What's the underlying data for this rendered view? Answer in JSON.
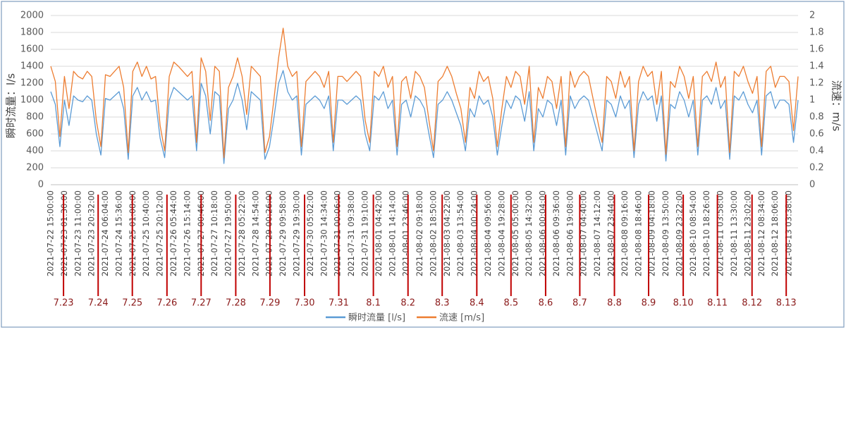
{
  "chart_data": {
    "type": "line",
    "y_label": "瞬时流量：l/s",
    "y2_label": "流速：m/s",
    "ylim": [
      0,
      2000
    ],
    "yticks": [
      0,
      200,
      400,
      600,
      800,
      1000,
      1200,
      1400,
      1600,
      1800,
      2000
    ],
    "y2lim": [
      0,
      2
    ],
    "y2ticks": [
      0,
      0.2,
      0.4,
      0.6,
      0.8,
      1,
      1.2,
      1.4,
      1.6,
      1.8,
      2
    ],
    "grid": true,
    "legend": "bottom",
    "categories": [
      "2021-07-22 15:00:00",
      null,
      null,
      "2021-07-23 01:30:00",
      null,
      null,
      "2021-07-23 11:00:00",
      null,
      null,
      "2021-07-23 20:32:00",
      null,
      null,
      "2021-07-24 06:04:00",
      null,
      null,
      "2021-07-24 15:36:00",
      null,
      null,
      "2021-07-25 01:08:00",
      null,
      null,
      "2021-07-25 10:40:00",
      null,
      null,
      "2021-07-25 20:12:00",
      null,
      null,
      "2021-07-26 05:44:00",
      null,
      null,
      "2021-07-26 15:14:00",
      null,
      null,
      "2021-07-27 00:46:00",
      null,
      null,
      "2021-07-27 10:18:00",
      null,
      null,
      "2021-07-27 19:50:00",
      null,
      null,
      "2021-07-28 05:22:00",
      null,
      null,
      "2021-07-28 14:54:00",
      null,
      null,
      "2021-07-29 00:26:00",
      null,
      null,
      "2021-07-29 09:58:00",
      null,
      null,
      "2021-07-29 19:30:00",
      null,
      null,
      "2021-07-30 05:02:00",
      null,
      null,
      "2021-07-30 14:34:00",
      null,
      null,
      "2021-07-31 00:06:00",
      null,
      null,
      "2021-07-31 09:38:00",
      null,
      null,
      "2021-07-31 19:10:00",
      null,
      null,
      "2021-08-01 04:42:00",
      null,
      null,
      "2021-08-01 14:14:00",
      null,
      null,
      "2021-08-01 23:46:00",
      null,
      null,
      "2021-08-02 09:18:00",
      null,
      null,
      "2021-08-02 18:50:00",
      null,
      null,
      "2021-08-03 04:22:00",
      null,
      null,
      "2021-08-03 13:54:00",
      null,
      null,
      "2021-08-04 00:24:00",
      null,
      null,
      "2021-08-04 09:56:00",
      null,
      null,
      "2021-08-04 19:28:00",
      null,
      null,
      "2021-08-05 05:00:00",
      null,
      null,
      "2021-08-05 14:32:00",
      null,
      null,
      "2021-08-06 00:04:00",
      null,
      null,
      "2021-08-06 09:36:00",
      null,
      null,
      "2021-08-06 19:08:00",
      null,
      null,
      "2021-08-07 04:40:00",
      null,
      null,
      "2021-08-07 14:12:00",
      null,
      null,
      "2021-08-07 23:44:00",
      null,
      null,
      "2021-08-08 09:16:00",
      null,
      null,
      "2021-08-08 18:46:00",
      null,
      null,
      "2021-08-09 04:18:00",
      null,
      null,
      "2021-08-09 13:50:00",
      null,
      null,
      "2021-08-09 23:22:00",
      null,
      null,
      "2021-08-10 08:54:00",
      null,
      null,
      "2021-08-10 18:26:00",
      null,
      null,
      "2021-08-11 03:58:00",
      null,
      null,
      "2021-08-11 13:30:00",
      null,
      null,
      "2021-08-11 23:02:00",
      null,
      null,
      "2021-08-12 08:34:00",
      null,
      null,
      "2021-08-12 18:06:00",
      null,
      null,
      "2021-08-13 03:38:00",
      null,
      null
    ],
    "series": [
      {
        "name": "瞬时流量 [l/s]",
        "color": "#5b9bd5",
        "axis": "y",
        "values": [
          1100,
          950,
          450,
          1000,
          700,
          1050,
          1000,
          980,
          1050,
          1000,
          600,
          350,
          1020,
          1000,
          1050,
          1100,
          900,
          300,
          1050,
          1150,
          1000,
          1100,
          980,
          1000,
          550,
          320,
          1000,
          1150,
          1100,
          1050,
          1000,
          1050,
          400,
          1200,
          1050,
          600,
          1100,
          1050,
          250,
          900,
          1000,
          1200,
          1000,
          650,
          1100,
          1050,
          1000,
          300,
          450,
          800,
          1200,
          1350,
          1100,
          1000,
          1050,
          350,
          950,
          1000,
          1050,
          1000,
          900,
          1050,
          400,
          1000,
          1000,
          950,
          1000,
          1050,
          1000,
          600,
          400,
          1050,
          1000,
          1100,
          900,
          1000,
          350,
          950,
          1000,
          800,
          1050,
          1000,
          900,
          600,
          320,
          950,
          1000,
          1100,
          1000,
          850,
          700,
          400,
          900,
          800,
          1050,
          950,
          1000,
          800,
          350,
          700,
          1000,
          900,
          1050,
          1000,
          750,
          1100,
          400,
          900,
          800,
          1000,
          950,
          700,
          1000,
          350,
          1050,
          900,
          1000,
          1050,
          1000,
          800,
          600,
          400,
          1000,
          950,
          800,
          1050,
          900,
          1000,
          320,
          950,
          1100,
          1000,
          1050,
          750,
          1050,
          280,
          950,
          900,
          1100,
          1000,
          800,
          1000,
          350,
          1000,
          1050,
          950,
          1150,
          900,
          1000,
          300,
          1050,
          1000,
          1100,
          950,
          850,
          1000,
          350,
          1050,
          1100,
          900,
          1000,
          1000,
          950,
          500,
          1000
        ]
      },
      {
        "name": "流速 [m/s]",
        "color": "#ed7d31",
        "axis": "y2",
        "values": [
          1.4,
          1.22,
          0.57,
          1.28,
          0.9,
          1.34,
          1.28,
          1.25,
          1.34,
          1.28,
          0.76,
          0.45,
          1.3,
          1.28,
          1.34,
          1.4,
          1.15,
          0.38,
          1.34,
          1.45,
          1.28,
          1.4,
          1.25,
          1.28,
          0.7,
          0.4,
          1.28,
          1.45,
          1.4,
          1.34,
          1.28,
          1.34,
          0.5,
          1.5,
          1.34,
          0.76,
          1.4,
          1.34,
          0.32,
          1.15,
          1.28,
          1.5,
          1.28,
          0.83,
          1.4,
          1.34,
          1.28,
          0.38,
          0.57,
          1.02,
          1.5,
          1.85,
          1.4,
          1.28,
          1.34,
          0.45,
          1.22,
          1.28,
          1.34,
          1.28,
          1.15,
          1.34,
          0.5,
          1.28,
          1.28,
          1.22,
          1.28,
          1.34,
          1.28,
          0.76,
          0.5,
          1.34,
          1.28,
          1.4,
          1.15,
          1.28,
          0.45,
          1.22,
          1.28,
          1.02,
          1.34,
          1.28,
          1.15,
          0.76,
          0.4,
          1.22,
          1.28,
          1.4,
          1.28,
          1.08,
          0.9,
          0.5,
          1.15,
          1.02,
          1.34,
          1.22,
          1.28,
          1.02,
          0.45,
          0.9,
          1.28,
          1.15,
          1.34,
          1.28,
          0.95,
          1.4,
          0.5,
          1.15,
          1.02,
          1.28,
          1.22,
          0.9,
          1.28,
          0.45,
          1.34,
          1.15,
          1.28,
          1.34,
          1.28,
          1.02,
          0.76,
          0.5,
          1.28,
          1.22,
          1.02,
          1.34,
          1.15,
          1.28,
          0.4,
          1.22,
          1.4,
          1.28,
          1.34,
          0.95,
          1.34,
          0.36,
          1.22,
          1.15,
          1.4,
          1.28,
          1.02,
          1.28,
          0.45,
          1.28,
          1.34,
          1.22,
          1.45,
          1.15,
          1.28,
          0.38,
          1.34,
          1.28,
          1.4,
          1.22,
          1.08,
          1.28,
          0.45,
          1.34,
          1.4,
          1.15,
          1.28,
          1.28,
          1.22,
          0.64,
          1.28
        ]
      }
    ],
    "annotation_color": "#c00000",
    "annotations": [
      {
        "text": "7.23",
        "x": 2.8
      },
      {
        "text": "7.24",
        "x": 10.4
      },
      {
        "text": "7.25",
        "x": 17.9
      },
      {
        "text": "7.26",
        "x": 25.5
      },
      {
        "text": "7.27",
        "x": 33.0
      },
      {
        "text": "7.28",
        "x": 40.6
      },
      {
        "text": "7.29",
        "x": 48.1
      },
      {
        "text": "7.30",
        "x": 55.7
      },
      {
        "text": "7.31",
        "x": 63.2
      },
      {
        "text": "8.1",
        "x": 70.8
      },
      {
        "text": "8.2",
        "x": 78.4
      },
      {
        "text": "8.3",
        "x": 85.9
      },
      {
        "text": "8.4",
        "x": 93.5
      },
      {
        "text": "8.5",
        "x": 101.0
      },
      {
        "text": "8.6",
        "x": 108.6
      },
      {
        "text": "8.7",
        "x": 116.1
      },
      {
        "text": "8.8",
        "x": 123.7
      },
      {
        "text": "8.9",
        "x": 131.2
      },
      {
        "text": "8.10",
        "x": 138.8
      },
      {
        "text": "8.11",
        "x": 146.3
      },
      {
        "text": "8.12",
        "x": 153.9
      },
      {
        "text": "8.13",
        "x": 161.4
      }
    ]
  }
}
